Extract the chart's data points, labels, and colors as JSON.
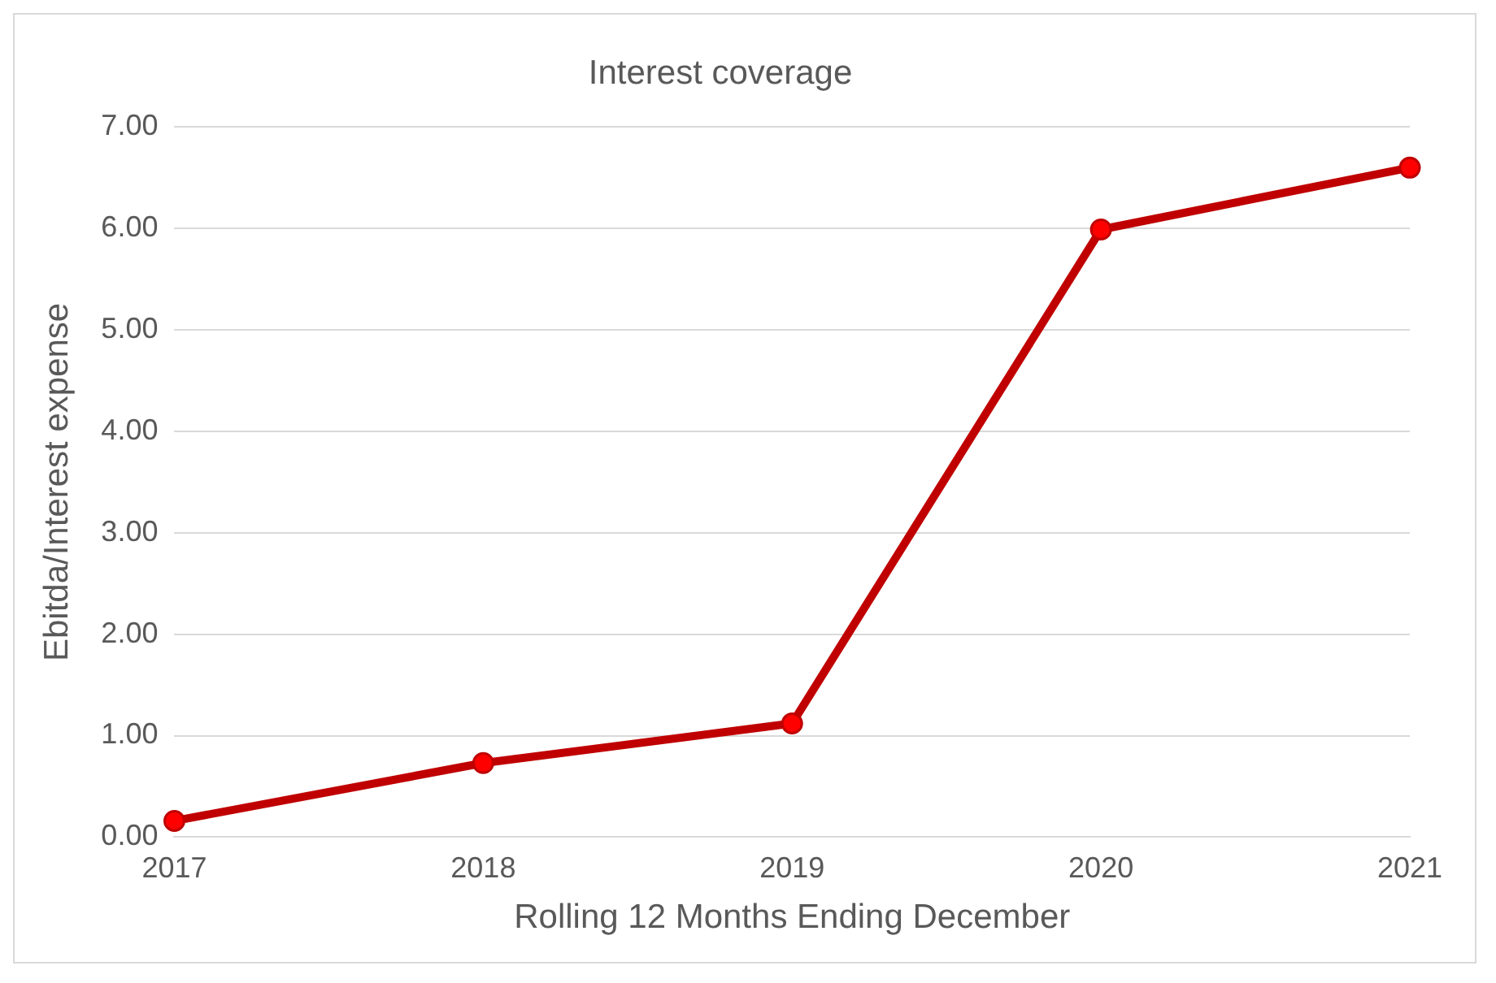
{
  "chart_data": {
    "type": "line",
    "title": "Interest coverage",
    "xlabel": "Rolling 12 Months Ending December",
    "ylabel": "Ebitda/Interest expense",
    "categories": [
      "2017",
      "2018",
      "2019",
      "2020",
      "2021"
    ],
    "series": [
      {
        "color": "#c00000",
        "values": [
          0.16,
          0.73,
          1.12,
          5.99,
          6.6
        ]
      }
    ],
    "ylim": [
      0,
      7
    ],
    "yticks": [
      {
        "value": 0,
        "label": "0.00"
      },
      {
        "value": 1,
        "label": "1.00"
      },
      {
        "value": 2,
        "label": "2.00"
      },
      {
        "value": 3,
        "label": "3.00"
      },
      {
        "value": 4,
        "label": "4.00"
      },
      {
        "value": 5,
        "label": "5.00"
      },
      {
        "value": 6,
        "label": "6.00"
      },
      {
        "value": 7,
        "label": "7.00"
      }
    ],
    "grid": "y",
    "legend": false,
    "marker": "circle",
    "line_style": "solid"
  }
}
